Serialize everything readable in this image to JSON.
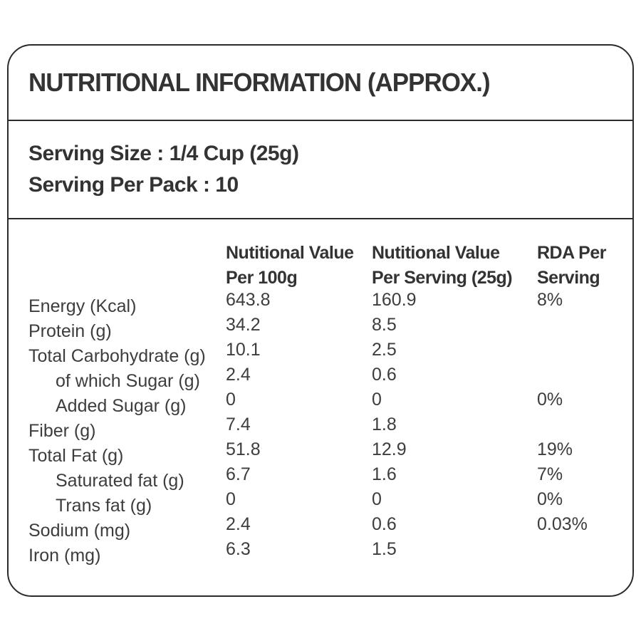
{
  "colors": {
    "background": "#ffffff",
    "border": "#2b2b2b",
    "text": "#363636"
  },
  "label": {
    "title": "NUTRITIONAL INFORMATION (APPROX.)",
    "serving": {
      "size": "Serving Size : 1/4 Cup (25g)",
      "per_pack": "Serving Per Pack : 10"
    },
    "table": {
      "columns": [
        {
          "line1": "Nutitional Value",
          "line2": "Per 100g"
        },
        {
          "line1": "Nutitional Value",
          "line2": "Per Serving (25g)"
        },
        {
          "line1": "RDA Per",
          "line2": "Serving"
        }
      ],
      "rows": [
        {
          "name": "Energy (Kcal)",
          "indent": false,
          "per_100g": "643.8",
          "per_serving": "160.9",
          "rda": "8%"
        },
        {
          "name": "Protein (g)",
          "indent": false,
          "per_100g": "34.2",
          "per_serving": "8.5",
          "rda": ""
        },
        {
          "name": "Total Carbohydrate (g)",
          "indent": false,
          "per_100g": "10.1",
          "per_serving": "2.5",
          "rda": ""
        },
        {
          "name": "of which Sugar (g)",
          "indent": true,
          "per_100g": "2.4",
          "per_serving": "0.6",
          "rda": ""
        },
        {
          "name": "Added Sugar (g)",
          "indent": true,
          "per_100g": "0",
          "per_serving": "0",
          "rda": "0%"
        },
        {
          "name": "Fiber (g)",
          "indent": false,
          "per_100g": "7.4",
          "per_serving": "1.8",
          "rda": ""
        },
        {
          "name": "Total Fat (g)",
          "indent": false,
          "per_100g": "51.8",
          "per_serving": "12.9",
          "rda": "19%"
        },
        {
          "name": "Saturated fat (g)",
          "indent": true,
          "per_100g": "6.7",
          "per_serving": "1.6",
          "rda": "7%"
        },
        {
          "name": "Trans fat (g)",
          "indent": true,
          "per_100g": "0",
          "per_serving": "0",
          "rda": "0%"
        },
        {
          "name": "Sodium (mg)",
          "indent": false,
          "per_100g": "2.4",
          "per_serving": "0.6",
          "rda": "0.03%"
        },
        {
          "name": "Iron (mg)",
          "indent": false,
          "per_100g": "6.3",
          "per_serving": "1.5",
          "rda": ""
        }
      ]
    }
  }
}
